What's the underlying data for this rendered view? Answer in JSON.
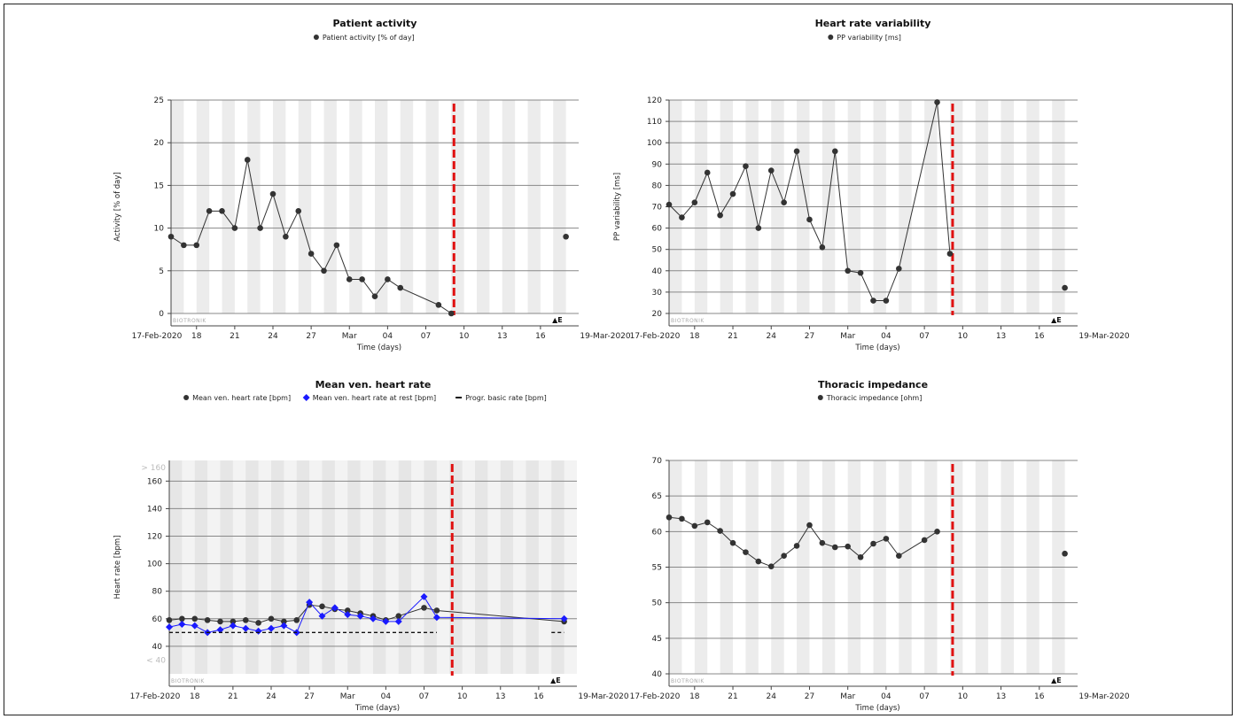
{
  "brand_text": "BIOTRONIK",
  "end_marker": "▲E",
  "x_axis": {
    "label": "Time (days)",
    "start_label": "17-Feb-2020",
    "end_label": "19-Mar-2020",
    "ticks": [
      "18",
      "21",
      "24",
      "27",
      "Mar",
      "04",
      "07",
      "10",
      "13",
      "16"
    ]
  },
  "colors": {
    "series": "#333333",
    "rest": "#1a1aff",
    "ref_line": "#e01010",
    "stripe": "#ececec"
  },
  "chart_data": [
    {
      "type": "line",
      "title": "Patient activity",
      "ylabel": "Activity [% of day]",
      "xlabel": "Time (days)",
      "x_range": [
        "2020-02-17",
        "2020-03-19"
      ],
      "ylim": [
        0,
        25
      ],
      "yticks": [
        "0",
        "5",
        "10",
        "15",
        "20",
        "25"
      ],
      "grid": true,
      "legend_position": "top-center",
      "reference_date": "2020-03-09",
      "series": [
        {
          "name": "Patient activity [% of day]",
          "style": "dot-line",
          "x": [
            "2020-02-16",
            "2020-02-17",
            "2020-02-18",
            "2020-02-19",
            "2020-02-20",
            "2020-02-21",
            "2020-02-22",
            "2020-02-23",
            "2020-02-24",
            "2020-02-25",
            "2020-02-26",
            "2020-02-27",
            "2020-02-28",
            "2020-02-29",
            "2020-03-01",
            "2020-03-02",
            "2020-03-03",
            "2020-03-04",
            "2020-03-05",
            "2020-03-06",
            "2020-03-08",
            "2020-03-09",
            "2020-03-18"
          ],
          "y": [
            9,
            8,
            8,
            12,
            12,
            10,
            18,
            10,
            14,
            9,
            12,
            7,
            5,
            8,
            4,
            4,
            2,
            4,
            3,
            null,
            1,
            0,
            9
          ],
          "connect_until": 21
        }
      ]
    },
    {
      "type": "line",
      "title": "Heart rate variability",
      "ylabel": "PP variability [ms]",
      "xlabel": "Time (days)",
      "x_range": [
        "2020-02-17",
        "2020-03-19"
      ],
      "ylim": [
        20,
        120
      ],
      "yticks": [
        "20",
        "30",
        "40",
        "50",
        "60",
        "70",
        "80",
        "90",
        "100",
        "110",
        "120"
      ],
      "grid": true,
      "legend_position": "top-center",
      "reference_date": "2020-03-09",
      "series": [
        {
          "name": "PP variability [ms]",
          "style": "dot-line",
          "x": [
            "2020-02-16",
            "2020-02-17",
            "2020-02-18",
            "2020-02-19",
            "2020-02-20",
            "2020-02-21",
            "2020-02-22",
            "2020-02-23",
            "2020-02-24",
            "2020-02-25",
            "2020-02-26",
            "2020-02-27",
            "2020-02-28",
            "2020-02-29",
            "2020-03-01",
            "2020-03-02",
            "2020-03-03",
            "2020-03-04",
            "2020-03-05",
            "2020-03-06",
            "2020-03-08",
            "2020-03-09",
            "2020-03-18"
          ],
          "y": [
            71,
            65,
            72,
            86,
            66,
            76,
            89,
            60,
            87,
            72,
            96,
            64,
            51,
            96,
            40,
            39,
            26,
            26,
            41,
            null,
            119,
            48,
            32
          ],
          "connect_until": 21
        }
      ]
    },
    {
      "type": "line",
      "title": "Mean ven. heart rate",
      "ylabel": "Heart rate [bpm]",
      "xlabel": "Time (days)",
      "x_range": [
        "2020-02-17",
        "2020-03-19"
      ],
      "ylim": [
        20,
        175
      ],
      "yticks": [
        "40",
        "60",
        "80",
        "100",
        "120",
        "140",
        "160"
      ],
      "ytick_extra": [
        "< 40",
        "> 160"
      ],
      "grid": true,
      "legend_position": "top-center",
      "reference_date": "2020-03-09",
      "series": [
        {
          "name": "Mean ven. heart rate [bpm]",
          "style": "dot-line",
          "x": [
            "2020-02-16",
            "2020-02-17",
            "2020-02-18",
            "2020-02-19",
            "2020-02-20",
            "2020-02-21",
            "2020-02-22",
            "2020-02-23",
            "2020-02-24",
            "2020-02-25",
            "2020-02-26",
            "2020-02-27",
            "2020-02-28",
            "2020-02-29",
            "2020-03-01",
            "2020-03-02",
            "2020-03-03",
            "2020-03-04",
            "2020-03-05",
            "2020-03-07",
            "2020-03-08",
            "2020-03-18"
          ],
          "y": [
            59,
            60,
            60,
            59,
            58,
            58,
            59,
            57,
            60,
            58,
            59,
            70,
            69,
            67,
            66,
            64,
            62,
            59,
            62,
            68,
            66,
            58
          ],
          "connect_until": 21
        },
        {
          "name": "Mean ven. heart rate at rest [bpm]",
          "style": "diamond-line",
          "x": [
            "2020-02-16",
            "2020-02-17",
            "2020-02-18",
            "2020-02-19",
            "2020-02-20",
            "2020-02-21",
            "2020-02-22",
            "2020-02-23",
            "2020-02-24",
            "2020-02-25",
            "2020-02-26",
            "2020-02-27",
            "2020-02-28",
            "2020-02-29",
            "2020-03-01",
            "2020-03-02",
            "2020-03-03",
            "2020-03-04",
            "2020-03-05",
            "2020-03-07",
            "2020-03-08",
            "2020-03-18"
          ],
          "y": [
            54,
            56,
            55,
            50,
            52,
            55,
            53,
            51,
            53,
            55,
            50,
            72,
            62,
            68,
            63,
            62,
            60,
            58,
            58,
            76,
            61,
            60
          ],
          "connect_until": 21
        },
        {
          "name": "Progr. basic rate [bpm]",
          "style": "dash",
          "segments": [
            {
              "x0": "2020-02-16",
              "x1": "2020-03-08",
              "y": 50
            },
            {
              "x0": "2020-03-17",
              "x1": "2020-03-18",
              "y": 50
            }
          ]
        }
      ]
    },
    {
      "type": "line",
      "title": "Thoracic impedance",
      "ylabel": "",
      "xlabel": "Time (days)",
      "x_range": [
        "2020-02-17",
        "2020-03-19"
      ],
      "ylim": [
        40,
        70
      ],
      "yticks": [
        "40",
        "45",
        "50",
        "55",
        "60",
        "65",
        "70"
      ],
      "grid": true,
      "legend_position": "top-center",
      "reference_date": "2020-03-09",
      "series": [
        {
          "name": "Thoracic impedance [ohm]",
          "style": "dot-line",
          "x": [
            "2020-02-16",
            "2020-02-17",
            "2020-02-18",
            "2020-02-19",
            "2020-02-20",
            "2020-02-21",
            "2020-02-22",
            "2020-02-23",
            "2020-02-24",
            "2020-02-25",
            "2020-02-26",
            "2020-02-27",
            "2020-02-28",
            "2020-02-29",
            "2020-03-01",
            "2020-03-02",
            "2020-03-03",
            "2020-03-04",
            "2020-03-05",
            "2020-03-07",
            "2020-03-08",
            "2020-03-18"
          ],
          "y": [
            62,
            61.8,
            60.8,
            61.3,
            60.1,
            58.4,
            57.1,
            55.8,
            55.1,
            56.6,
            58,
            60.9,
            58.4,
            57.8,
            57.9,
            56.4,
            58.3,
            59,
            56.6,
            58.8,
            60,
            56.9
          ],
          "connect_until": 20
        }
      ]
    }
  ]
}
